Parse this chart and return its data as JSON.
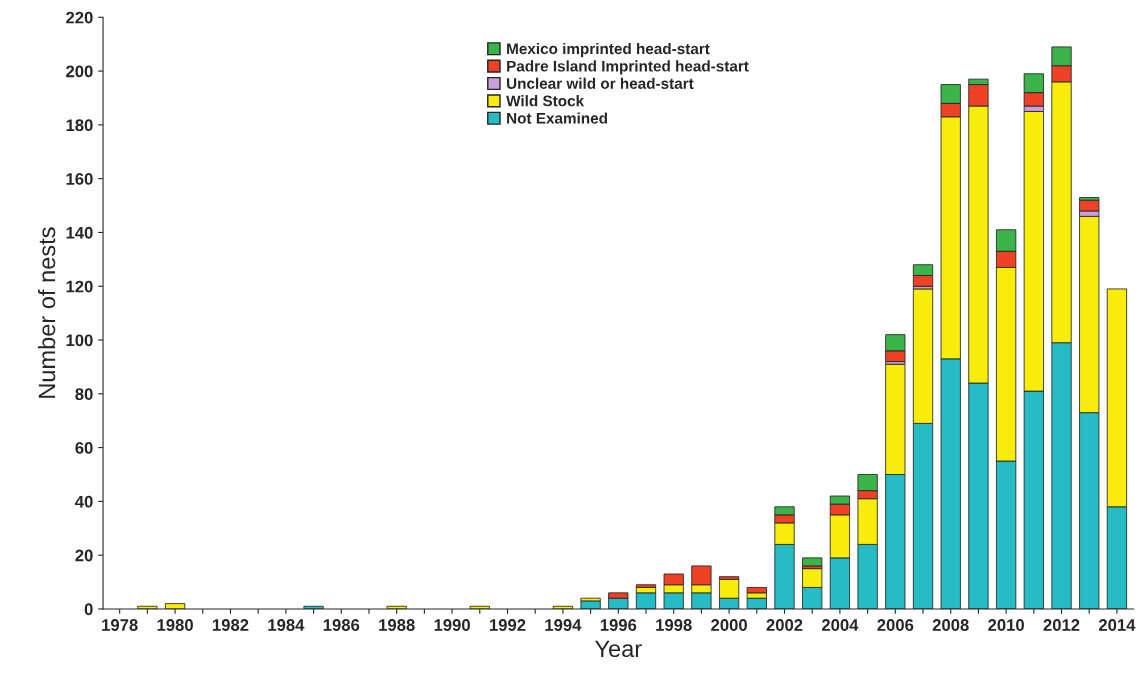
{
  "chart_data": {
    "type": "bar",
    "stacked": true,
    "xlabel": "Year",
    "ylabel": "Number of nests",
    "categories": [
      "1978",
      null,
      "1980",
      null,
      "1982",
      null,
      "1984",
      null,
      "1986",
      null,
      "1988",
      null,
      "1990",
      null,
      "1992",
      null,
      "1994",
      null,
      "1996",
      null,
      "1998",
      null,
      "2000",
      null,
      "2002",
      null,
      "2004",
      null,
      "2006",
      null,
      "2008",
      null,
      "2010",
      null,
      "2012",
      null,
      "2014"
    ],
    "series": [
      {
        "name": "Not Examined",
        "color": "#26bcc6",
        "values": [
          0,
          0,
          0,
          0,
          0,
          0,
          0,
          1,
          0,
          0,
          0,
          0,
          0,
          0,
          0,
          0,
          0,
          3,
          4,
          6,
          6,
          6,
          4,
          4,
          24,
          8,
          19,
          24,
          50,
          69,
          93,
          84,
          55,
          81,
          99,
          73,
          38
        ]
      },
      {
        "name": "Wild Stock",
        "color": "#f8ec0a",
        "values": [
          0,
          1,
          2,
          0,
          0,
          0,
          0,
          0,
          0,
          0,
          1,
          0,
          0,
          1,
          0,
          0,
          1,
          1,
          0,
          2,
          3,
          3,
          7,
          2,
          8,
          7,
          16,
          17,
          41,
          50,
          90,
          103,
          72,
          104,
          97,
          73,
          81
        ]
      },
      {
        "name": "Unclear wild or head-start",
        "color": "#c9a0dc",
        "values": [
          0,
          0,
          0,
          0,
          0,
          0,
          0,
          0,
          0,
          0,
          0,
          0,
          0,
          0,
          0,
          0,
          0,
          0,
          0,
          0,
          0,
          0,
          0,
          0,
          0,
          0,
          0,
          0,
          1,
          1,
          0,
          0,
          0,
          2,
          0,
          2,
          0
        ]
      },
      {
        "name": "Padre Island Imprinted head-start",
        "color": "#ee4125",
        "values": [
          0,
          0,
          0,
          0,
          0,
          0,
          0,
          0,
          0,
          0,
          0,
          0,
          0,
          0,
          0,
          0,
          0,
          0,
          2,
          1,
          4,
          7,
          1,
          2,
          3,
          1,
          4,
          3,
          4,
          4,
          5,
          8,
          6,
          5,
          6,
          4,
          0
        ]
      },
      {
        "name": "Mexico imprinted head-start",
        "color": "#3bb54a",
        "values": [
          0,
          0,
          0,
          0,
          0,
          0,
          0,
          0,
          0,
          0,
          0,
          0,
          0,
          0,
          0,
          0,
          0,
          0,
          0,
          0,
          0,
          0,
          0,
          0,
          3,
          3,
          3,
          6,
          6,
          4,
          7,
          2,
          8,
          7,
          7,
          1,
          0
        ]
      }
    ],
    "ylim": [
      0,
      220
    ],
    "yticks": [
      0,
      20,
      40,
      60,
      80,
      100,
      120,
      140,
      160,
      180,
      200,
      220
    ],
    "legend": "top",
    "grid": false
  }
}
